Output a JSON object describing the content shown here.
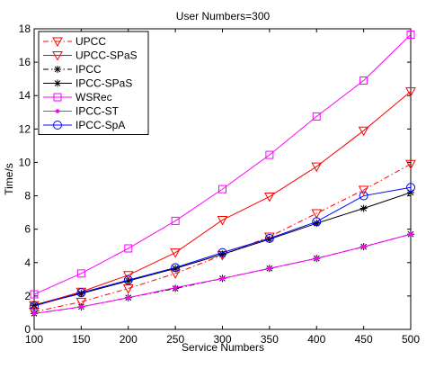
{
  "chart_data": {
    "type": "line",
    "title": "User Numbers=300",
    "xlabel": "Service Numbers",
    "ylabel": "Time/s",
    "x": [
      100,
      150,
      200,
      250,
      300,
      350,
      400,
      450,
      500
    ],
    "xlim": [
      100,
      500
    ],
    "ylim": [
      0,
      18
    ],
    "xticks": [
      "100",
      "150",
      "200",
      "250",
      "300",
      "350",
      "400",
      "450",
      "500"
    ],
    "yticks": [
      "0",
      "2",
      "4",
      "6",
      "8",
      "10",
      "12",
      "14",
      "16",
      "18"
    ],
    "grid": false,
    "legend_position": "top-left",
    "series": [
      {
        "name": "UPCC",
        "color": "#ff0000",
        "dash": "dashdot",
        "marker": "triangle-down",
        "values": [
          1.05,
          1.65,
          2.45,
          3.35,
          4.45,
          5.55,
          6.95,
          8.35,
          9.9
        ]
      },
      {
        "name": "UPCC-SPaS",
        "color": "#ff0000",
        "dash": "solid",
        "marker": "triangle-down",
        "values": [
          1.45,
          2.25,
          3.25,
          4.6,
          6.55,
          7.95,
          9.75,
          11.9,
          14.25
        ]
      },
      {
        "name": "IPCC",
        "color": "#000000",
        "dash": "dashdot",
        "marker": "star",
        "values": [
          0.95,
          1.35,
          1.9,
          2.45,
          3.05,
          3.65,
          4.25,
          4.95,
          5.7
        ]
      },
      {
        "name": "IPCC-SPaS",
        "color": "#000000",
        "dash": "solid",
        "marker": "star",
        "values": [
          1.45,
          2.15,
          2.9,
          3.65,
          4.5,
          5.4,
          6.35,
          7.25,
          8.2
        ]
      },
      {
        "name": "WSRec",
        "color": "#ff00ff",
        "dash": "solid",
        "marker": "square",
        "values": [
          2.1,
          3.35,
          4.85,
          6.5,
          8.4,
          10.45,
          12.75,
          14.9,
          17.65
        ]
      },
      {
        "name": "IPCC-ST",
        "color": "#ff00ff",
        "dash": "solid",
        "marker": "dot",
        "values": [
          0.95,
          1.35,
          1.9,
          2.5,
          3.05,
          3.65,
          4.25,
          4.95,
          5.7
        ]
      },
      {
        "name": "IPCC-SpA",
        "color": "#0000ff",
        "dash": "solid",
        "marker": "circle",
        "values": [
          1.4,
          2.2,
          2.95,
          3.7,
          4.6,
          5.45,
          6.45,
          8.0,
          8.5
        ]
      }
    ]
  }
}
